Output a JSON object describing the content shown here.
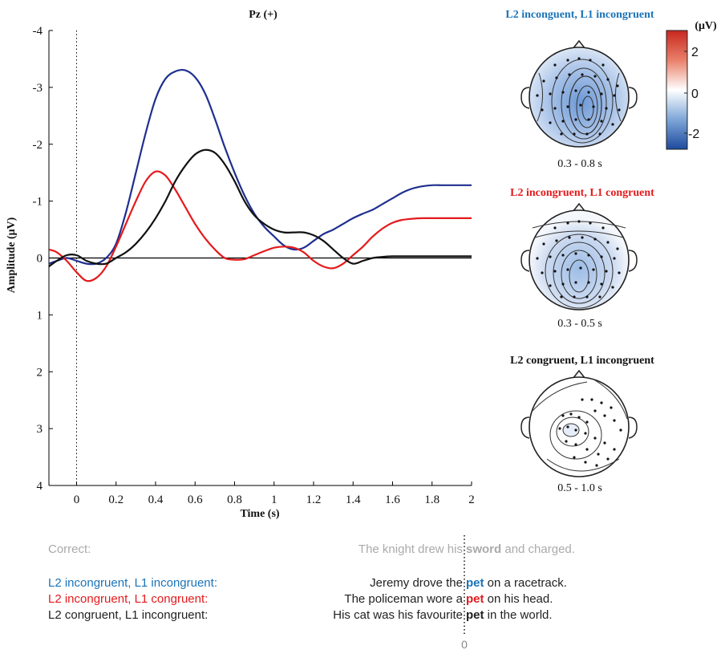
{
  "chart_data": {
    "type": "line",
    "title": "Pz (+)",
    "xlabel": "Time (s)",
    "ylabel": "Amplitude (μV)",
    "xlim": [
      -0.14,
      2.0
    ],
    "ylim": [
      4,
      -4
    ],
    "xticks": [
      "0",
      "0.2",
      "0.4",
      "0.6",
      "0.8",
      "1",
      "1.2",
      "1.4",
      "1.6",
      "1.8",
      "2"
    ],
    "yticks": [
      "-4",
      "-3",
      "-2",
      "-1",
      "0",
      "1",
      "2",
      "3",
      "4"
    ],
    "colors": {
      "blue": "#1f2f8f",
      "red": "#e41a1c",
      "black": "#111111"
    },
    "series": [
      {
        "color": "#1f2f8f",
        "x": [
          -0.14,
          -0.1,
          -0.05,
          0,
          0.05,
          0.1,
          0.15,
          0.2,
          0.25,
          0.3,
          0.35,
          0.4,
          0.45,
          0.5,
          0.55,
          0.6,
          0.65,
          0.7,
          0.75,
          0.8,
          0.85,
          0.9,
          0.95,
          1.0,
          1.05,
          1.1,
          1.15,
          1.2,
          1.25,
          1.3,
          1.35,
          1.4,
          1.45,
          1.5,
          1.55,
          1.6,
          1.65,
          1.7,
          1.75,
          1.8,
          1.85,
          1.9,
          1.95,
          2.0
        ],
        "y": [
          0.1,
          0.05,
          0.0,
          0.05,
          0.1,
          0.1,
          0.0,
          -0.25,
          -0.8,
          -1.5,
          -2.2,
          -2.8,
          -3.15,
          -3.28,
          -3.3,
          -3.18,
          -2.9,
          -2.45,
          -1.95,
          -1.5,
          -1.1,
          -0.78,
          -0.55,
          -0.38,
          -0.22,
          -0.15,
          -0.18,
          -0.3,
          -0.42,
          -0.5,
          -0.6,
          -0.7,
          -0.78,
          -0.85,
          -0.95,
          -1.05,
          -1.15,
          -1.22,
          -1.26,
          -1.28,
          -1.28,
          -1.28,
          -1.28,
          -1.28
        ]
      },
      {
        "color": "#e41a1c",
        "x": [
          -0.14,
          -0.1,
          -0.05,
          0,
          0.05,
          0.1,
          0.15,
          0.2,
          0.25,
          0.3,
          0.35,
          0.4,
          0.45,
          0.5,
          0.55,
          0.6,
          0.65,
          0.7,
          0.75,
          0.8,
          0.85,
          0.9,
          0.95,
          1.0,
          1.05,
          1.1,
          1.15,
          1.2,
          1.25,
          1.3,
          1.35,
          1.4,
          1.45,
          1.5,
          1.55,
          1.6,
          1.65,
          1.7,
          1.75,
          1.8,
          1.85,
          1.9,
          1.95,
          2.0
        ],
        "y": [
          -0.15,
          -0.1,
          0.05,
          0.25,
          0.4,
          0.35,
          0.15,
          -0.2,
          -0.6,
          -1.0,
          -1.35,
          -1.52,
          -1.45,
          -1.2,
          -0.9,
          -0.6,
          -0.35,
          -0.15,
          0.0,
          0.03,
          0.02,
          -0.05,
          -0.12,
          -0.18,
          -0.2,
          -0.18,
          -0.1,
          0.05,
          0.15,
          0.18,
          0.1,
          -0.05,
          -0.2,
          -0.38,
          -0.52,
          -0.62,
          -0.67,
          -0.69,
          -0.7,
          -0.7,
          -0.7,
          -0.7,
          -0.7,
          -0.7
        ]
      },
      {
        "color": "#111111",
        "x": [
          -0.14,
          -0.1,
          -0.05,
          0,
          0.05,
          0.1,
          0.15,
          0.2,
          0.25,
          0.3,
          0.35,
          0.4,
          0.45,
          0.5,
          0.55,
          0.6,
          0.65,
          0.7,
          0.75,
          0.8,
          0.85,
          0.9,
          0.95,
          1.0,
          1.05,
          1.1,
          1.15,
          1.2,
          1.25,
          1.3,
          1.35,
          1.4,
          1.45,
          1.5,
          1.55,
          1.6,
          1.65,
          1.7,
          1.75,
          1.8,
          1.85,
          1.9,
          1.95,
          2.0
        ],
        "y": [
          0.15,
          0.05,
          -0.05,
          -0.05,
          0.05,
          0.1,
          0.1,
          0.0,
          -0.1,
          -0.25,
          -0.45,
          -0.7,
          -1.0,
          -1.35,
          -1.62,
          -1.82,
          -1.9,
          -1.85,
          -1.65,
          -1.35,
          -1.0,
          -0.75,
          -0.6,
          -0.5,
          -0.45,
          -0.45,
          -0.45,
          -0.4,
          -0.3,
          -0.15,
          0.0,
          0.1,
          0.05,
          0.0,
          -0.02,
          -0.03,
          -0.03,
          -0.03,
          -0.03,
          -0.03,
          -0.03,
          -0.03,
          -0.03,
          -0.03
        ]
      }
    ]
  },
  "topomaps": {
    "unit": "(μV)",
    "colorbar_ticks": [
      "2",
      "0",
      "-2"
    ],
    "maps": [
      {
        "title": "L2 inconguent, L1 incongruent",
        "title_color": "#1a73b8",
        "window": "0.3 - 0.8 s"
      },
      {
        "title": "L2 incongruent, L1 congruent",
        "title_color": "#e41a1c",
        "window": "0.3 - 0.5 s"
      },
      {
        "title": "L2 congruent, L1 incongruent",
        "title_color": "#111111",
        "window": "0.5 - 1.0 s"
      }
    ]
  },
  "sentences": {
    "zero_label": "0",
    "rows": [
      {
        "label": "Correct:",
        "prefix": "The knight drew his ",
        "target": "sword",
        "suffix": " and charged.",
        "color": "#aaaaaa",
        "target_color": "#aaaaaa"
      },
      {
        "label": "L2 incongruent, L1 incongruent:",
        "prefix": "Jeremy drove the ",
        "target": "pet",
        "suffix": " on a racetrack.",
        "color": "#1a73b8",
        "target_color": "#1a73b8"
      },
      {
        "label": "L2 incongruent, L1 congruent:",
        "prefix": "The policeman wore a ",
        "target": "pet",
        "suffix": " on his head.",
        "color": "#e41a1c",
        "target_color": "#e41a1c"
      },
      {
        "label": "L2 congruent, L1 incongruent:",
        "prefix": "His cat was his favourite ",
        "target": "pet",
        "suffix": " in the world.",
        "color": "#222222",
        "target_color": "#222222"
      }
    ]
  }
}
